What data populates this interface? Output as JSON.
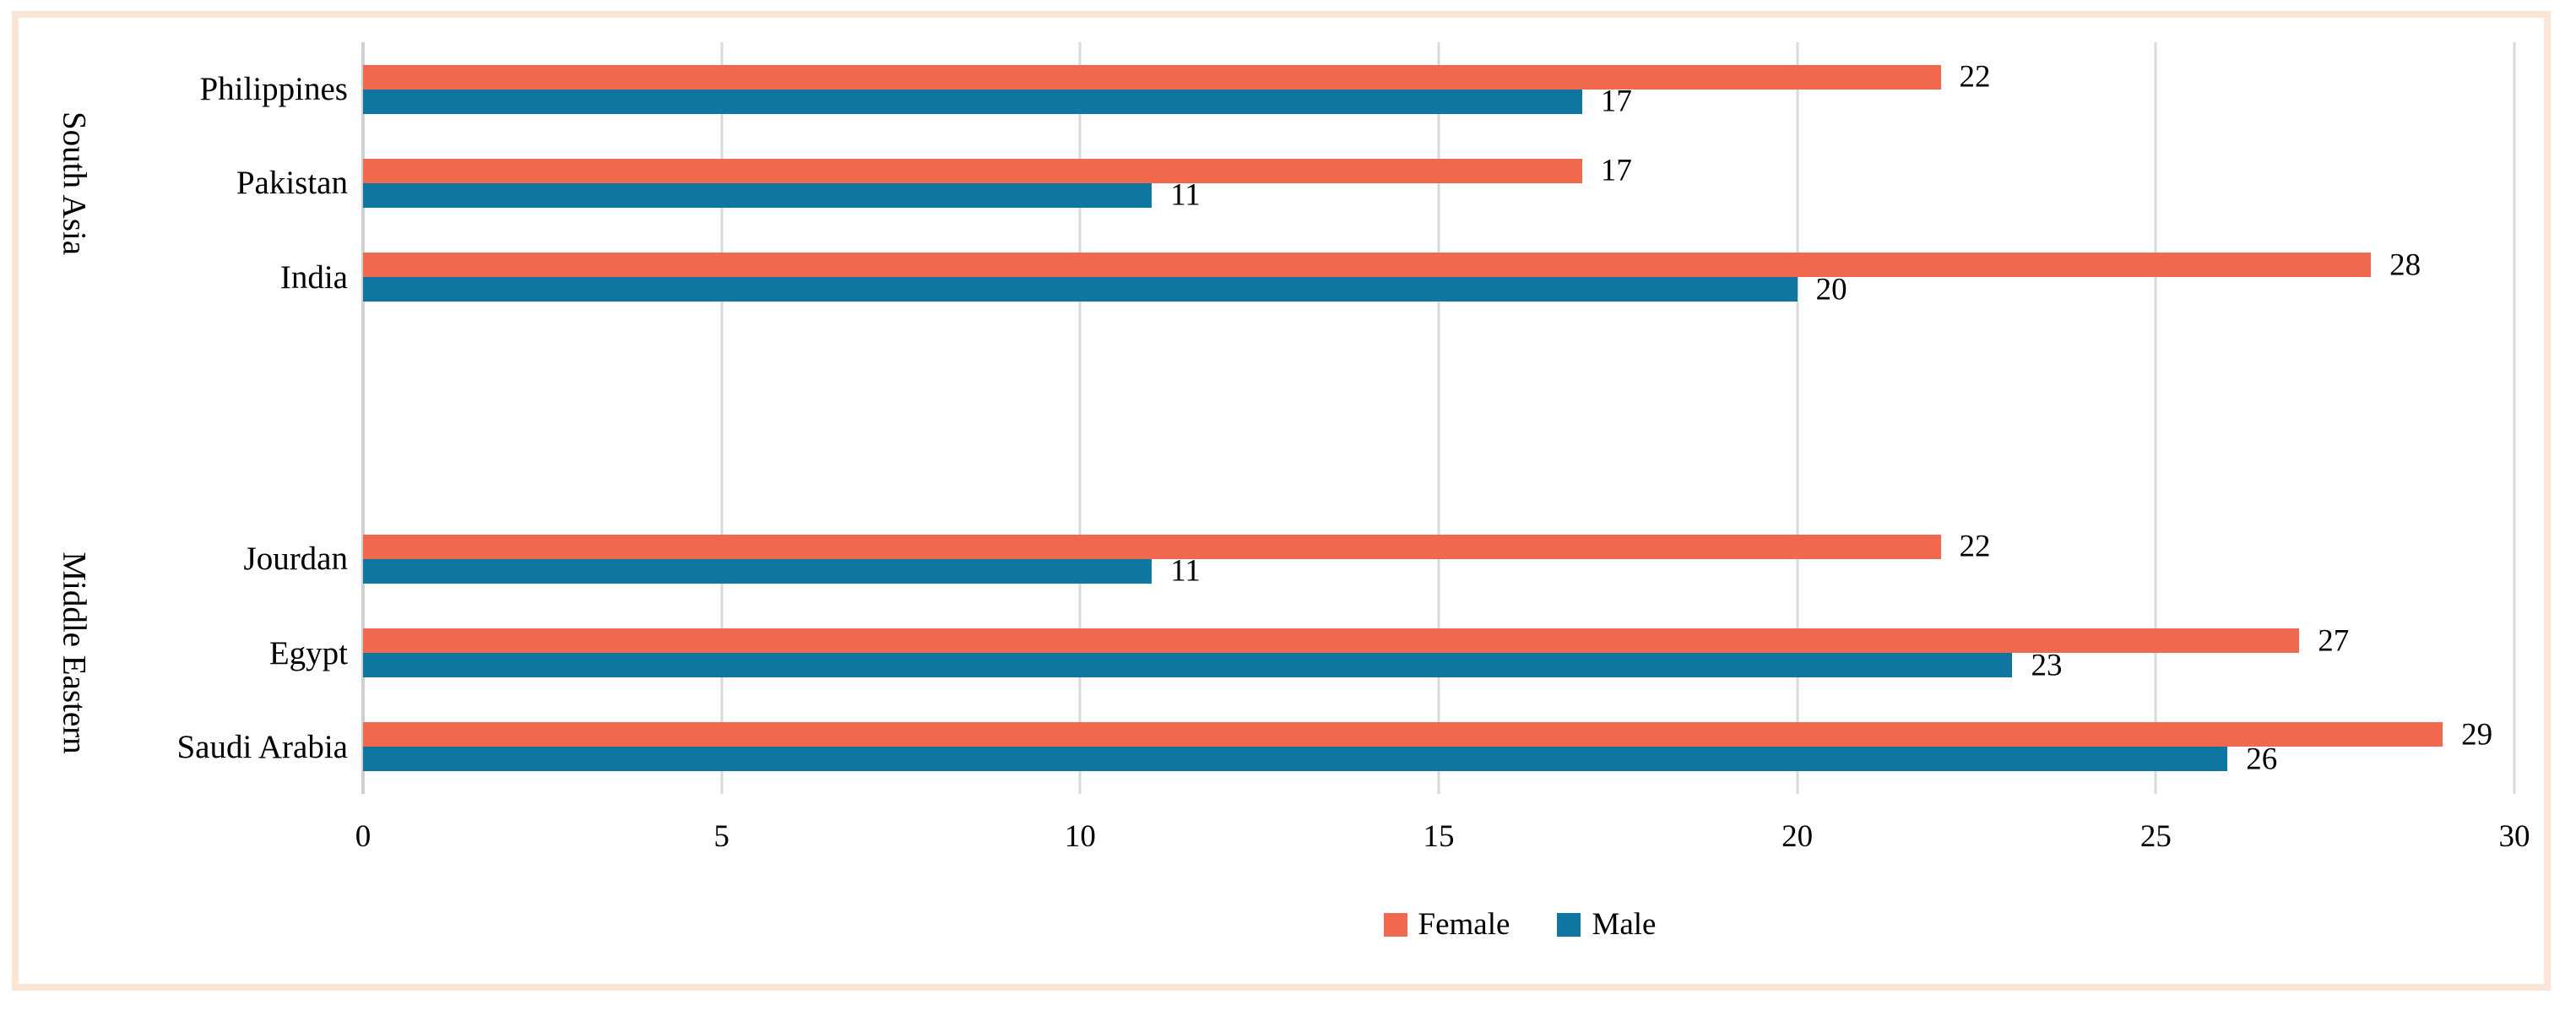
{
  "colors": {
    "female": "#f0684e",
    "male": "#0e76a0",
    "frame_border": "#fbe5d6",
    "gridline": "#d9d9d9"
  },
  "chart_data": {
    "type": "bar",
    "orientation": "horizontal",
    "categories": [
      "Philippines",
      "Pakistan",
      "India",
      "Jourdan",
      "Egypt",
      "Saudi Arabia"
    ],
    "category_groups": [
      {
        "label": "South Asia",
        "categories": [
          "Philippines",
          "Pakistan",
          "India"
        ]
      },
      {
        "label": "Middle Eastern",
        "categories": [
          "Jourdan",
          "Egypt",
          "Saudi Arabia"
        ]
      }
    ],
    "series": [
      {
        "name": "Female",
        "color": "#f0684e",
        "values": [
          22,
          17,
          28,
          22,
          27,
          29
        ]
      },
      {
        "name": "Male",
        "color": "#0e76a0",
        "values": [
          17,
          11,
          20,
          11,
          23,
          26
        ]
      }
    ],
    "data_labels": {
      "Philippines": {
        "Female": "22",
        "Male": "17"
      },
      "Pakistan": {
        "Female": "17",
        "Male": "11"
      },
      "India": {
        "Female": "28",
        "Male": "20"
      },
      "Jourdan": {
        "Female": "22",
        "Male": "11"
      },
      "Egypt": {
        "Female": "27",
        "Male": "23"
      },
      "Saudi Arabia": {
        "Female": "29",
        "Male": "26"
      }
    },
    "title": "",
    "xlabel": "",
    "ylabel": "",
    "xlim": [
      0,
      30
    ],
    "xticks": [
      0,
      5,
      10,
      15,
      20,
      25,
      30
    ],
    "grid": true,
    "legend_position": "bottom"
  }
}
